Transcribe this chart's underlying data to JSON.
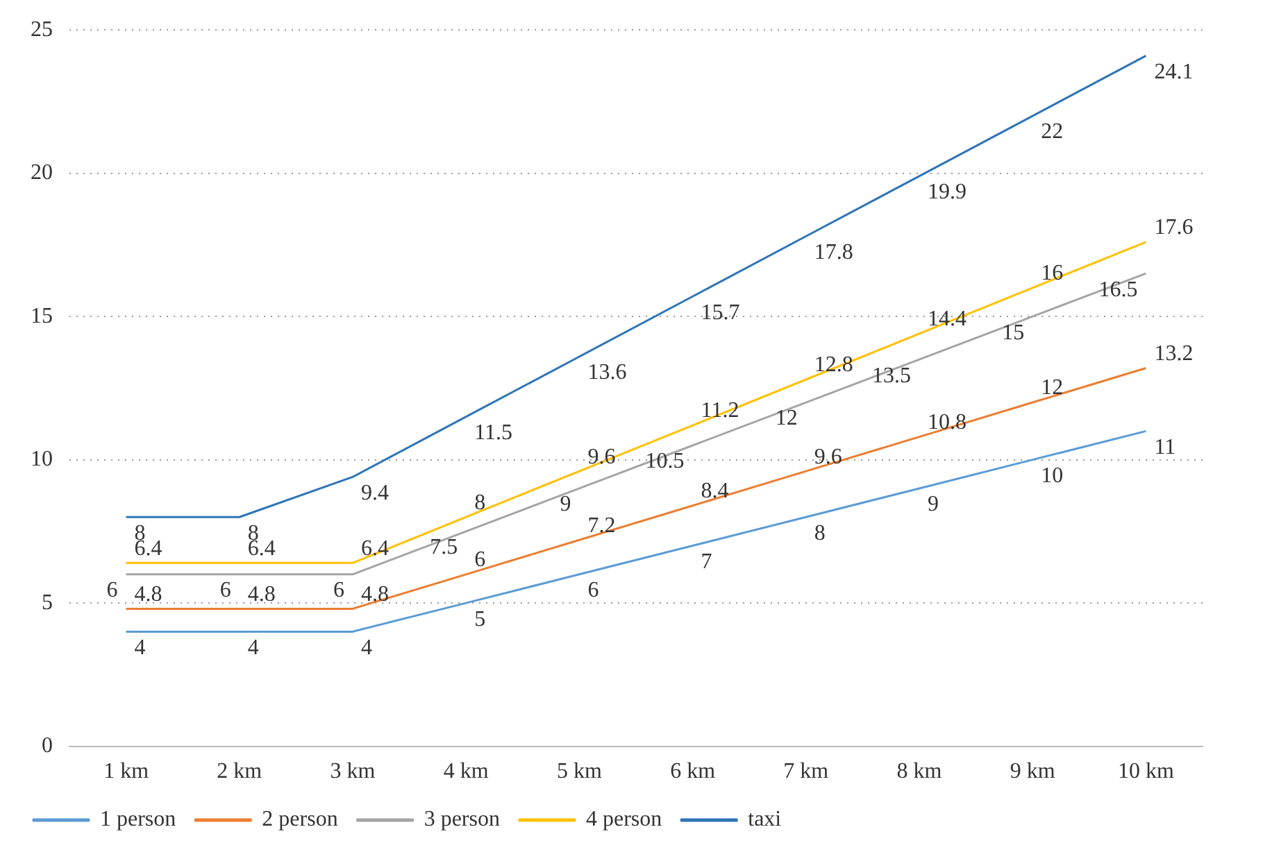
{
  "chart_data": {
    "type": "line",
    "categories": [
      "1 km",
      "2 km",
      "3 km",
      "4 km",
      "5 km",
      "6 km",
      "7 km",
      "8 km",
      "9 km",
      "10 km"
    ],
    "series": [
      {
        "name": "1 person",
        "color": "#5b9bd5",
        "values": [
          4,
          4,
          4,
          5,
          6,
          7,
          8,
          9,
          10,
          11
        ]
      },
      {
        "name": "2 person",
        "color": "#ed7d31",
        "values": [
          4.8,
          4.8,
          4.8,
          6,
          7.2,
          8.4,
          9.6,
          10.8,
          12,
          13.2
        ]
      },
      {
        "name": "3 person",
        "color": "#a5a5a5",
        "values": [
          6,
          6,
          6,
          7.5,
          9,
          10.5,
          12,
          13.5,
          15,
          16.5
        ]
      },
      {
        "name": "4 person",
        "color": "#ffc000",
        "values": [
          6.4,
          6.4,
          6.4,
          8,
          9.6,
          11.2,
          12.8,
          14.4,
          16,
          17.6
        ]
      },
      {
        "name": "taxi",
        "color": "#2e75b6",
        "values": [
          8,
          8,
          9.4,
          11.5,
          13.6,
          15.7,
          17.8,
          19.9,
          22,
          24.1
        ]
      }
    ],
    "ylim": [
      0,
      25
    ],
    "yticks": [
      0,
      5,
      10,
      15,
      20,
      25
    ],
    "grid": "y",
    "legend": "bottom",
    "marker": "none",
    "line_style": "solid",
    "data_labels": true
  }
}
